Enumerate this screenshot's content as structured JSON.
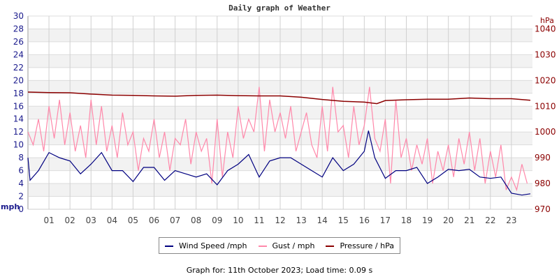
{
  "chart_data": {
    "type": "line",
    "title": "Daily graph of Weather",
    "left_axis": {
      "unit_label": "mph",
      "range": [
        0,
        30
      ],
      "ticks": [
        0,
        2,
        4,
        6,
        8,
        10,
        12,
        14,
        16,
        18,
        20,
        22,
        24,
        26,
        28,
        30
      ],
      "color": "#1a1a8c"
    },
    "right_axis": {
      "unit_label": "hPa",
      "range": [
        970,
        1045
      ],
      "ticks": [
        970,
        980,
        990,
        1000,
        1010,
        1020,
        1030,
        1040
      ],
      "color": "#8b0000"
    },
    "x_axis": {
      "range_hours": [
        0,
        24
      ],
      "tick_labels": [
        "01",
        "02",
        "03",
        "04",
        "05",
        "06",
        "07",
        "08",
        "09",
        "10",
        "11",
        "12",
        "13",
        "14",
        "15",
        "16",
        "17",
        "18",
        "19",
        "20",
        "21",
        "22",
        "23"
      ]
    },
    "grid": true,
    "legend_position": "bottom",
    "series": [
      {
        "name": "Wind Speed /mph",
        "color": "#000080",
        "axis": "left",
        "x": [
          0,
          0.1,
          0.5,
          1,
          1.5,
          2,
          2.5,
          3,
          3.5,
          4,
          4.5,
          5,
          5.5,
          6,
          6.5,
          7,
          7.5,
          8,
          8.5,
          9,
          9.5,
          10,
          10.5,
          11,
          11.5,
          12,
          12.5,
          13,
          13.5,
          14,
          14.5,
          15,
          15.5,
          16,
          16.2,
          16.5,
          17,
          17.5,
          18,
          18.5,
          19,
          19.5,
          20,
          20.5,
          21,
          21.5,
          22,
          22.5,
          23,
          23.5,
          23.9
        ],
        "values": [
          8,
          4.5,
          6,
          8.8,
          8,
          7.5,
          5.5,
          7,
          8.8,
          6,
          6,
          4.3,
          6.5,
          6.5,
          4.5,
          6,
          5.5,
          5,
          5.5,
          3.8,
          6,
          7,
          8.5,
          5,
          7.5,
          8,
          8,
          7,
          6,
          5,
          8,
          6,
          7,
          9,
          12.2,
          8,
          4.8,
          6,
          6,
          6.5,
          4,
          5,
          6.2,
          6,
          6.2,
          5,
          4.8,
          5,
          2.5,
          2.2,
          2.4
        ]
      },
      {
        "name": "Gust / mph",
        "color": "#ff88aa",
        "axis": "left",
        "interval_minutes": 15,
        "values": [
          12,
          10,
          14,
          9,
          16,
          11,
          17,
          10,
          15,
          9,
          13,
          8,
          17,
          10,
          16,
          9,
          13,
          8,
          15,
          10,
          12,
          6,
          11,
          9,
          14,
          8,
          12,
          6,
          11,
          10,
          14,
          7,
          12,
          9,
          11,
          4,
          14,
          5,
          12,
          8,
          16,
          11,
          14,
          12,
          19,
          9,
          17,
          12,
          15,
          11,
          16,
          9,
          12,
          15,
          10,
          8,
          16,
          9,
          19,
          12,
          13,
          8,
          16,
          10,
          13,
          19,
          11,
          9,
          14,
          4,
          17,
          8,
          11,
          6,
          10,
          7,
          11,
          4,
          9,
          6,
          10,
          5,
          11,
          7,
          12,
          6,
          11,
          4,
          9,
          5,
          10,
          3,
          5,
          3,
          7,
          4
        ]
      },
      {
        "name": "Pressure / hPa",
        "color": "#8b0000",
        "axis": "right",
        "x": [
          0,
          1,
          2,
          3,
          4,
          5,
          6,
          7,
          8,
          9,
          10,
          11,
          12,
          13,
          14,
          15,
          16,
          16.6,
          17,
          18,
          19,
          20,
          21,
          22,
          23,
          23.9
        ],
        "values": [
          1015.5,
          1015.3,
          1015.2,
          1014.7,
          1014.3,
          1014.2,
          1014.0,
          1013.9,
          1014.2,
          1014.3,
          1014.1,
          1014.0,
          1014.0,
          1013.5,
          1012.6,
          1011.9,
          1011.6,
          1011.0,
          1012.2,
          1012.5,
          1012.7,
          1012.7,
          1013.2,
          1012.9,
          1012.9,
          1012.3
        ]
      }
    ]
  },
  "footer": "Graph for: 11th October 2023; Load time: 0.09 s"
}
